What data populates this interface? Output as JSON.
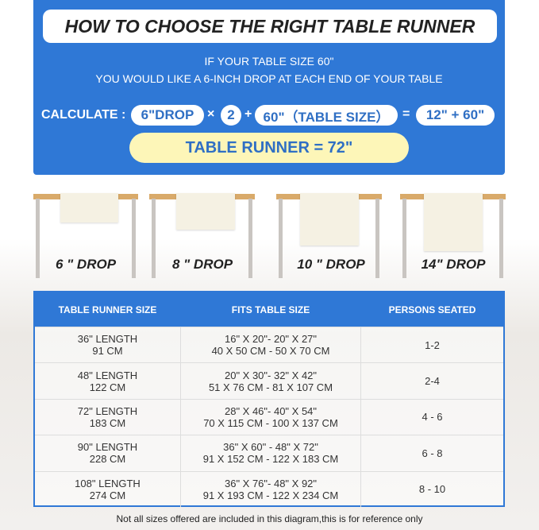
{
  "title": "HOW TO CHOOSE THE RIGHT TABLE RUNNER",
  "intro": [
    "IF YOUR TABLE SIZE 60\"",
    "YOU WOULD LIKE A 6-INCH DROP AT EACH END OF YOUR TABLE"
  ],
  "calc": {
    "label": "CALCULATE :",
    "drop": "6\"DROP",
    "times": "×",
    "factor": "2",
    "plus": "+",
    "table": "60\"（TABLE SIZE）",
    "equals": "=",
    "sum": "12\" + 60\"",
    "result": "TABLE RUNNER = 72\""
  },
  "drops": [
    "6 \" DROP",
    "8 \" DROP",
    "10 \" DROP",
    "14\" DROP"
  ],
  "table": {
    "headers": [
      "TABLE RUNNER SIZE",
      "FITS TABLE SIZE",
      "PERSONS SEATED"
    ],
    "rows": [
      {
        "len": "36\" LENGTH",
        "cm": "91 CM",
        "fit1": "16\" X 20\"- 20\" X 27\"",
        "fit2": "40 X 50 CM - 50 X 70 CM",
        "persons": "1-2"
      },
      {
        "len": "48\" LENGTH",
        "cm": "122 CM",
        "fit1": "20\" X 30\"- 32\" X 42\"",
        "fit2": "51 X 76 CM - 81 X 107 CM",
        "persons": "2-4"
      },
      {
        "len": "72\" LENGTH",
        "cm": "183 CM",
        "fit1": "28\" X 46\"- 40\" X 54\"",
        "fit2": "70 X 115 CM - 100 X 137 CM",
        "persons": "4 - 6"
      },
      {
        "len": "90\" LENGTH",
        "cm": "228 CM",
        "fit1": "36\" X 60\" - 48\" X 72\"",
        "fit2": "91 X 152 CM - 122 X 183 CM",
        "persons": "6 - 8"
      },
      {
        "len": "108\" LENGTH",
        "cm": "274 CM",
        "fit1": "36\" X 76\"- 48\" X 92\"",
        "fit2": "91 X 193 CM - 122 X 234 CM",
        "persons": "8 - 10"
      }
    ]
  },
  "footnote": "Not all sizes offered are included in this diagram,this is for reference only",
  "colors": {
    "blue": "#2f78d6",
    "yellow": "#fdf6b8",
    "wood": "#d9aa6a",
    "cloth": "#f5f1e3"
  }
}
